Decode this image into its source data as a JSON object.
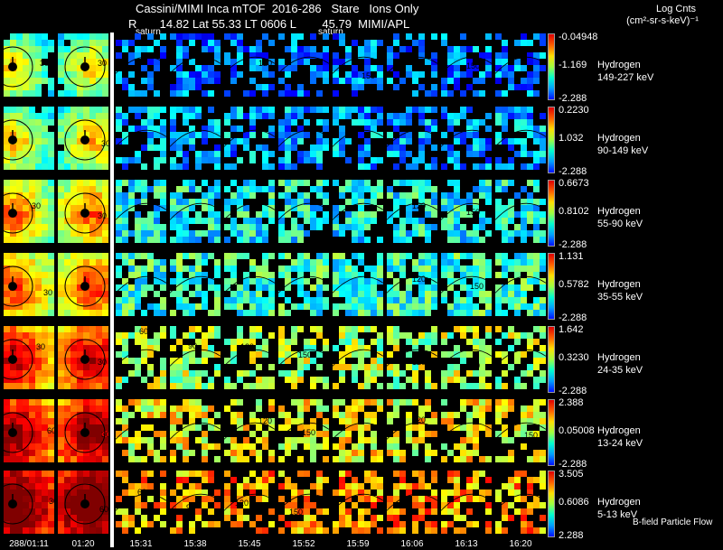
{
  "header": {
    "title": "Cassini/MIMI Inca mTOF  2016-286   Stare   Ions Only",
    "subtitle": "R       14.82 Lat 55.33 LT 0606 L        45.79  MIMI/APL",
    "saturn_left": "saturn",
    "saturn_right": "saturn"
  },
  "units": {
    "title": "Log Cnts",
    "subtitle": "(cm²-sr-s-keV)⁻¹"
  },
  "rows": [
    {
      "species": "Hydrogen",
      "energy": "149-227 keV",
      "cb_max": "-0.04948",
      "cb_mid": "-1.169",
      "cb_min": "-2.288"
    },
    {
      "species": "Hydrogen",
      "energy": "90-149 keV",
      "cb_max": "0.2230",
      "cb_mid": "1.032",
      "cb_min": "-2.288"
    },
    {
      "species": "Hydrogen",
      "energy": "55-90 keV",
      "cb_max": "0.6673",
      "cb_mid": "0.8102",
      "cb_min": "-2.288"
    },
    {
      "species": "Hydrogen",
      "energy": "35-55 keV",
      "cb_max": "1.131",
      "cb_mid": "0.5782",
      "cb_min": "-2.288"
    },
    {
      "species": "Hydrogen",
      "energy": "24-35 keV",
      "cb_max": "1.642",
      "cb_mid": "0.3230",
      "cb_min": "-2.288"
    },
    {
      "species": "Hydrogen",
      "energy": "13-24 keV",
      "cb_max": "2.388",
      "cb_mid": "0.05008",
      "cb_min": "-2.288"
    },
    {
      "species": "Hydrogen",
      "energy": "5-13 keV",
      "cb_max": "3.505",
      "cb_mid": "0.6086",
      "cb_min": "2.288"
    }
  ],
  "times": [
    "288/01:11",
    "01:20",
    "15:31",
    "15:38",
    "15:45",
    "15:52",
    "15:59",
    "16:06",
    "16:13",
    "16:20"
  ],
  "footer": {
    "bfield": "B-field Particle Flow"
  },
  "contour_labels": [
    "30",
    "60",
    "90",
    "120",
    "150"
  ]
}
